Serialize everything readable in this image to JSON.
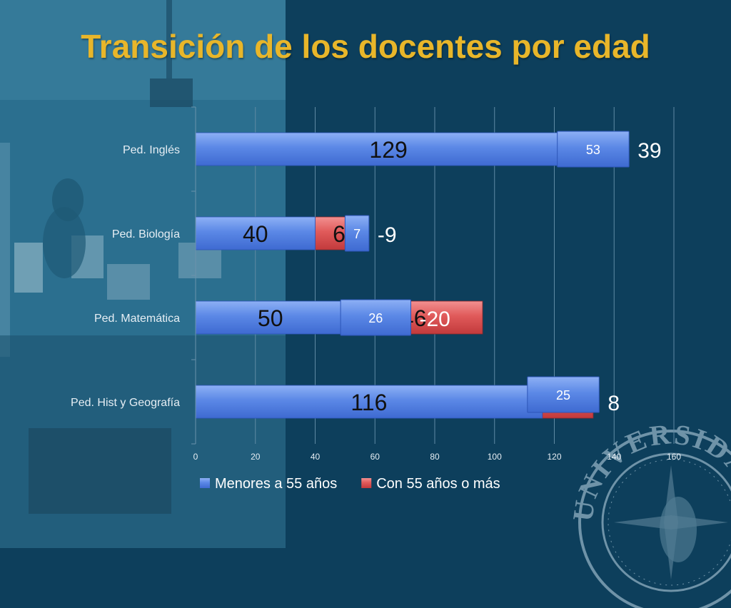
{
  "slide": {
    "title": "Transición de los docentes por edad",
    "seal_text": "UNIVERSIDAD DE M"
  },
  "colors": {
    "background": "#0d3f5c",
    "photo_overlay": "#2a6f8e",
    "title": "#e8b62a",
    "series_blue": "#4f7fe0",
    "series_red": "#d8464a",
    "text_light": "#ffffff",
    "axis_text": "#e6eef4"
  },
  "chart_data": {
    "type": "bar",
    "orientation": "horizontal",
    "categories": [
      "Ped. Inglés",
      "Ped. Biología",
      "Ped. Matemática",
      "Ped. Hist y Geografía"
    ],
    "series": [
      {
        "name": "Menores a 55 años",
        "values": [
          129,
          40,
          50,
          116
        ]
      },
      {
        "name": "Con 55 años o más",
        "values": [
          14,
          16,
          46,
          17
        ]
      }
    ],
    "visible_value_labels": {
      "series_1": [
        "129",
        "40",
        "50",
        "116"
      ],
      "series_2": [
        "",
        "6",
        "46",
        ""
      ]
    },
    "overlay_boxes": [
      53,
      7,
      26,
      25
    ],
    "differences": [
      "39",
      "-9",
      "-20",
      "8"
    ],
    "xlim": [
      0,
      160
    ],
    "xticks": [
      0,
      20,
      40,
      60,
      80,
      100,
      120,
      140,
      160
    ],
    "xlabel": "",
    "ylabel": "",
    "grid": true,
    "legend_position": "bottom"
  }
}
